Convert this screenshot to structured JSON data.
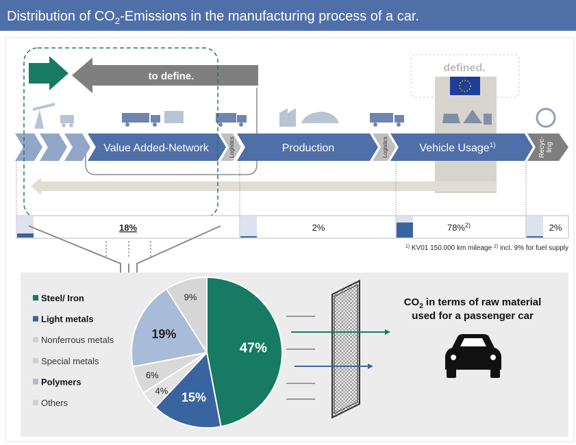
{
  "header": {
    "title": [
      "Distribution of CO",
      "2",
      "-Emissions in the manufacturing process of a car."
    ]
  },
  "process": {
    "to_define": "to define.",
    "defined": "defined.",
    "stages": [
      "Value Added-Network",
      "Logistics",
      "Production",
      "Logistics",
      "Vehicle Usage",
      "Recyc-",
      "ling"
    ],
    "vehicle_usage_note": "1)"
  },
  "shares": [
    "18%",
    "2%",
    "78%",
    "2%"
  ],
  "share_note": "2)",
  "footnote": [
    "1)",
    " KV01 150.000 km mileage ",
    "2)",
    " incl. 9% for fuel supply"
  ],
  "result": {
    "lines": [
      "CO",
      "2",
      " in terms of raw material",
      "used for a passenger car"
    ]
  },
  "chart_data": {
    "type": "pie",
    "categories": [
      "Steel/ Iron",
      "Light metals",
      "Nonferrous metals",
      "Special metals",
      "Polymers",
      "Others"
    ],
    "values": [
      47,
      15,
      4,
      6,
      19,
      9
    ],
    "value_labels": [
      "47%",
      "15%",
      "4%",
      "6%",
      "19%",
      "9%"
    ],
    "colors": [
      "#177a62",
      "#3a64a0",
      "#e3e3e3",
      "#d9d9d9",
      "#a8bbd8",
      "#d6d6d6"
    ]
  }
}
